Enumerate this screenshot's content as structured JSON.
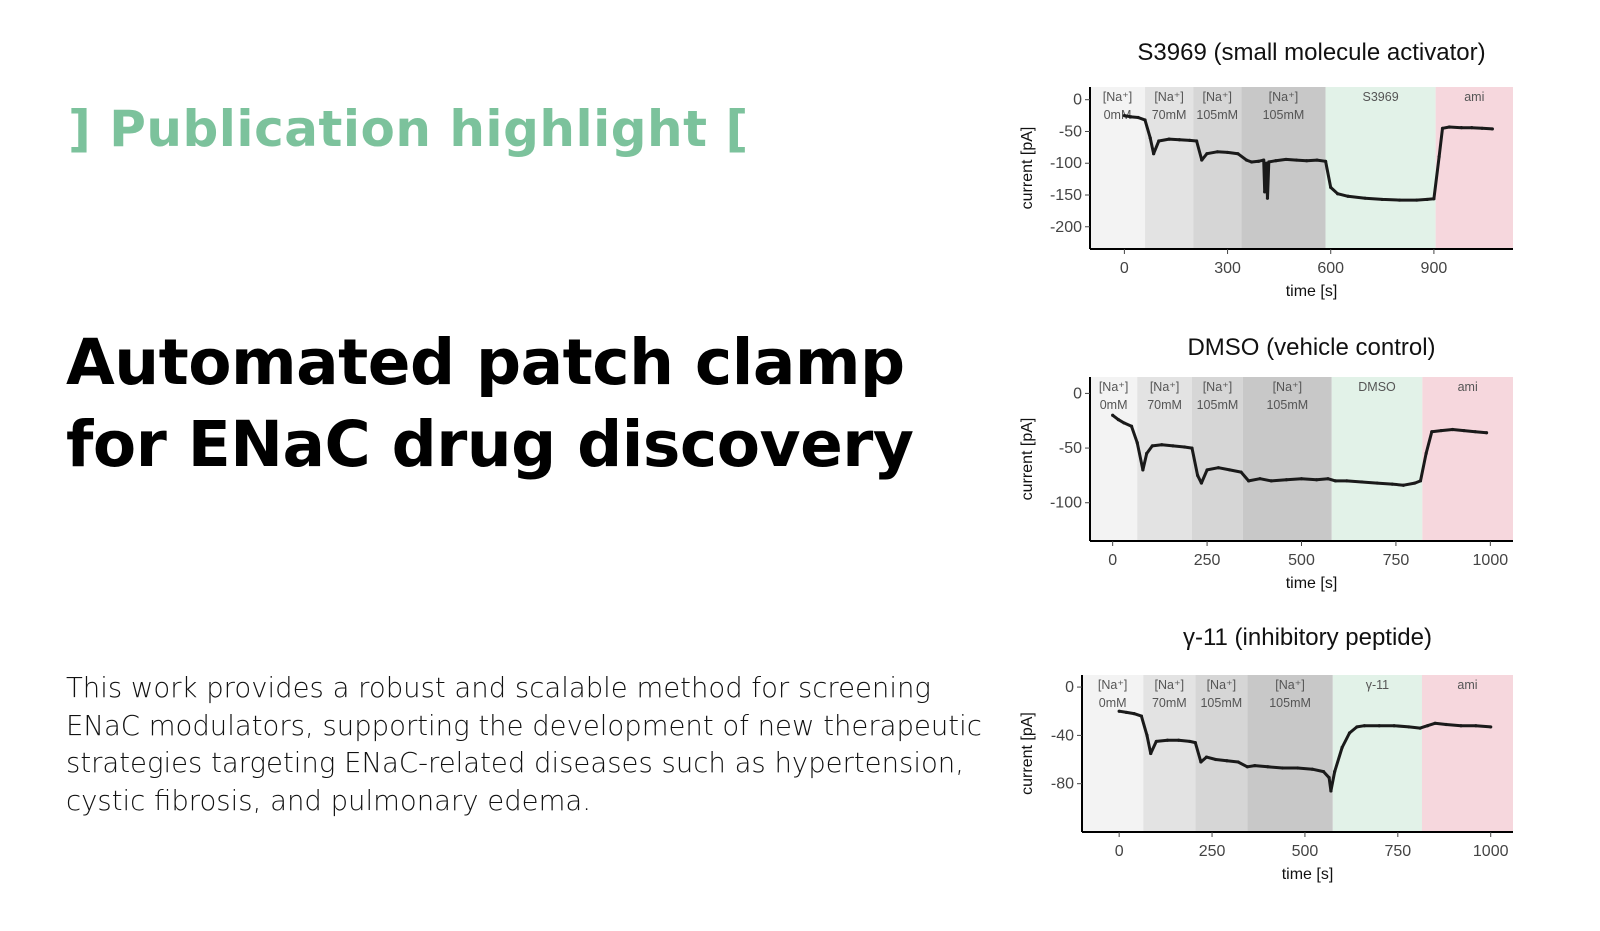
{
  "eyebrow": "] Publication highlight [",
  "headline": {
    "line1": "Automated patch clamp",
    "line2": "for ENaC drug discovery"
  },
  "body": {
    "line1": "This work provides a robust and scalable method for screening",
    "line2": "ENaC modulators, supporting the development of new therapeutic",
    "line3": "strategies targeting ENaC-related diseases such as hypertension,",
    "line4": "cystic fibrosis, and pulmonary edema."
  },
  "colors": {
    "accent": "#7cc29c",
    "band_0mM": "#f3f3f3",
    "band_70mM": "#e3e3e3",
    "band_105mM_a": "#d6d6d6",
    "band_105mM_b": "#c8c8c8",
    "band_compound": "#e2f2e8",
    "band_ami": "#f6d7dd",
    "trace": "#1a1a1a"
  },
  "chart_data": [
    {
      "type": "line",
      "title": "S3969 (small molecule activator)",
      "xlabel": "time [s]",
      "ylabel": "current [pA]",
      "xlim": [
        -100,
        1130
      ],
      "ylim": [
        -235,
        20
      ],
      "xticks": [
        0,
        300,
        600,
        900
      ],
      "yticks": [
        0,
        -50,
        -100,
        -150,
        -200
      ],
      "grid": false,
      "bands": [
        {
          "label1": "[Na⁺]",
          "label2": "0mM",
          "x0": -100,
          "x1": 60,
          "color": "#f3f3f3"
        },
        {
          "label1": "[Na⁺]",
          "label2": "70mM",
          "x0": 60,
          "x1": 200,
          "color": "#e3e3e3"
        },
        {
          "label1": "[Na⁺]",
          "label2": "105mM",
          "x0": 200,
          "x1": 340,
          "color": "#d6d6d6"
        },
        {
          "label1": "[Na⁺]",
          "label2": "105mM",
          "x0": 340,
          "x1": 585,
          "color": "#c8c8c8"
        },
        {
          "label1": "S3969",
          "label2": "",
          "x0": 585,
          "x1": 905,
          "color": "#e2f2e8"
        },
        {
          "label1": "ami",
          "label2": "",
          "x0": 905,
          "x1": 1130,
          "color": "#f6d7dd"
        }
      ],
      "series": [
        {
          "x": [
            0,
            20,
            40,
            60,
            75,
            85,
            100,
            130,
            160,
            190,
            210,
            225,
            240,
            270,
            300,
            330,
            355,
            370,
            390,
            405,
            408,
            412,
            416,
            420,
            440,
            470,
            500,
            530,
            560,
            585,
            600,
            620,
            650,
            700,
            750,
            800,
            850,
            880,
            900,
            915,
            925,
            945,
            980,
            1010,
            1040,
            1070
          ],
          "y": [
            -25,
            -27,
            -28,
            -32,
            -60,
            -85,
            -65,
            -62,
            -63,
            -64,
            -65,
            -95,
            -85,
            -82,
            -83,
            -85,
            -95,
            -98,
            -97,
            -95,
            -145,
            -100,
            -155,
            -98,
            -96,
            -94,
            -95,
            -96,
            -95,
            -97,
            -138,
            -148,
            -152,
            -155,
            -157,
            -158,
            -158,
            -157,
            -156,
            -90,
            -45,
            -43,
            -44,
            -44,
            -45,
            -46
          ]
        }
      ]
    },
    {
      "type": "line",
      "title": "DMSO (vehicle control)",
      "xlabel": "time [s]",
      "ylabel": "current [pA]",
      "xlim": [
        -60,
        1060
      ],
      "ylim": [
        -135,
        15
      ],
      "xticks": [
        0,
        250,
        500,
        750,
        1000
      ],
      "yticks": [
        0,
        -50,
        -100
      ],
      "grid": false,
      "bands": [
        {
          "label1": "[Na⁺]",
          "label2": "0mM",
          "x0": -60,
          "x1": 65,
          "color": "#f3f3f3"
        },
        {
          "label1": "[Na⁺]",
          "label2": "70mM",
          "x0": 65,
          "x1": 210,
          "color": "#e3e3e3"
        },
        {
          "label1": "[Na⁺]",
          "label2": "105mM",
          "x0": 210,
          "x1": 345,
          "color": "#d6d6d6"
        },
        {
          "label1": "[Na⁺]",
          "label2": "105mM",
          "x0": 345,
          "x1": 580,
          "color": "#c8c8c8"
        },
        {
          "label1": "DMSO",
          "label2": "",
          "x0": 580,
          "x1": 820,
          "color": "#e2f2e8"
        },
        {
          "label1": "ami",
          "label2": "",
          "x0": 820,
          "x1": 1060,
          "color": "#f6d7dd"
        }
      ],
      "series": [
        {
          "x": [
            0,
            15,
            30,
            50,
            65,
            80,
            90,
            105,
            130,
            160,
            190,
            210,
            225,
            235,
            250,
            280,
            310,
            340,
            360,
            390,
            420,
            460,
            500,
            540,
            570,
            590,
            620,
            660,
            700,
            740,
            770,
            800,
            815,
            830,
            845,
            870,
            900,
            930,
            960,
            990
          ],
          "y": [
            -20,
            -24,
            -27,
            -30,
            -45,
            -70,
            -55,
            -48,
            -47,
            -48,
            -49,
            -50,
            -75,
            -82,
            -70,
            -68,
            -70,
            -72,
            -80,
            -78,
            -80,
            -79,
            -78,
            -79,
            -78,
            -80,
            -80,
            -81,
            -82,
            -83,
            -84,
            -82,
            -80,
            -55,
            -35,
            -34,
            -33,
            -34,
            -35,
            -36
          ]
        }
      ]
    },
    {
      "type": "line",
      "title": "γ-11 (inhibitory peptide)",
      "xlabel": "time [s]",
      "ylabel": "current [pA]",
      "xlim": [
        -100,
        1060
      ],
      "ylim": [
        -120,
        10
      ],
      "xticks": [
        0,
        250,
        500,
        750,
        1000
      ],
      "yticks": [
        0,
        -40,
        -80
      ],
      "grid": false,
      "bands": [
        {
          "label1": "[Na⁺]",
          "label2": "0mM",
          "x0": -100,
          "x1": 65,
          "color": "#f3f3f3"
        },
        {
          "label1": "[Na⁺]",
          "label2": "70mM",
          "x0": 65,
          "x1": 205,
          "color": "#e3e3e3"
        },
        {
          "label1": "[Na⁺]",
          "label2": "105mM",
          "x0": 205,
          "x1": 345,
          "color": "#d6d6d6"
        },
        {
          "label1": "[Na⁺]",
          "label2": "105mM",
          "x0": 345,
          "x1": 575,
          "color": "#c8c8c8"
        },
        {
          "label1": "γ-11",
          "label2": "",
          "x0": 575,
          "x1": 815,
          "color": "#e2f2e8"
        },
        {
          "label1": "ami",
          "label2": "",
          "x0": 815,
          "x1": 1060,
          "color": "#f6d7dd"
        }
      ],
      "series": [
        {
          "x": [
            0,
            20,
            40,
            60,
            75,
            85,
            100,
            130,
            160,
            190,
            205,
            220,
            235,
            260,
            290,
            320,
            345,
            365,
            400,
            440,
            480,
            520,
            550,
            565,
            570,
            580,
            600,
            620,
            640,
            660,
            700,
            740,
            780,
            810,
            830,
            850,
            880,
            920,
            960,
            1000
          ],
          "y": [
            -20,
            -21,
            -22,
            -24,
            -40,
            -55,
            -45,
            -44,
            -44,
            -45,
            -46,
            -62,
            -58,
            -60,
            -61,
            -62,
            -66,
            -65,
            -66,
            -67,
            -67,
            -68,
            -70,
            -75,
            -86,
            -70,
            -50,
            -38,
            -33,
            -32,
            -32,
            -32,
            -33,
            -34,
            -32,
            -30,
            -31,
            -32,
            -32,
            -33
          ]
        }
      ]
    }
  ]
}
